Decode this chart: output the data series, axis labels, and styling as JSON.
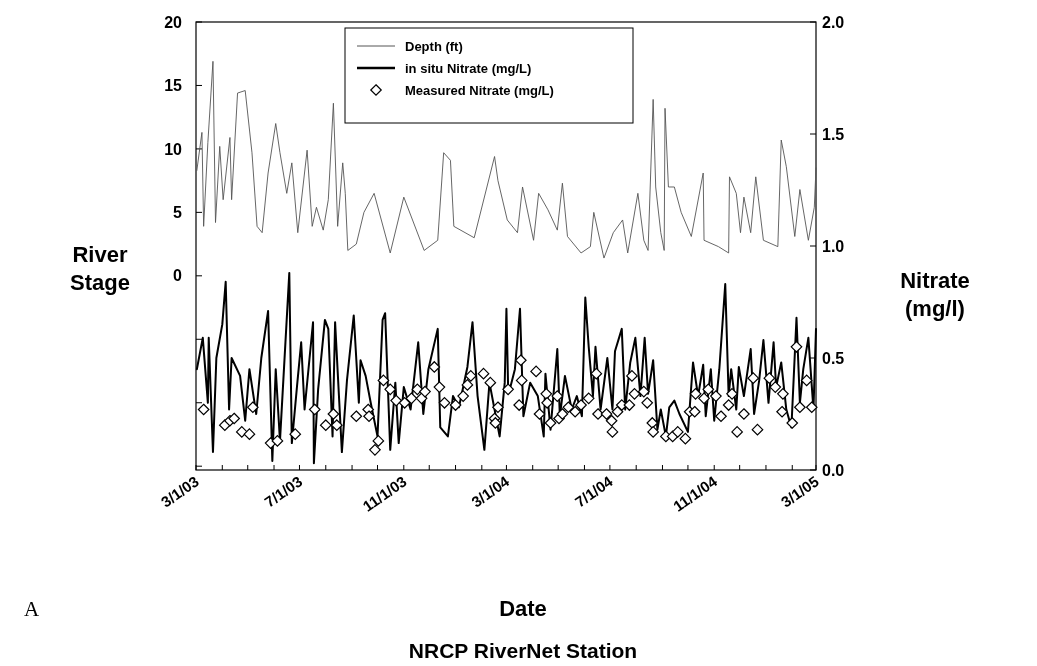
{
  "chart_data": {
    "type": "line",
    "xlabel": "Date",
    "ylabel": "River Stage",
    "y2label": "Nitrate (mg/l)",
    "annotations": [
      "A",
      "NRCP RiverNet Station"
    ],
    "legend": "top",
    "xlim": [
      "2003-03-01",
      "2005-03-01"
    ],
    "xticks": [
      {
        "value": "2003-03-01",
        "label": "3/1/03"
      },
      {
        "value": "2003-04-01",
        "label": null
      },
      {
        "value": "2003-05-01",
        "label": null
      },
      {
        "value": "2003-06-01",
        "label": null
      },
      {
        "value": "2003-07-01",
        "label": "7/1/03"
      },
      {
        "value": "2003-08-01",
        "label": null
      },
      {
        "value": "2003-09-01",
        "label": null
      },
      {
        "value": "2003-10-01",
        "label": null
      },
      {
        "value": "2003-11-01",
        "label": "11/1/03"
      },
      {
        "value": "2003-12-01",
        "label": null
      },
      {
        "value": "2004-01-01",
        "label": null
      },
      {
        "value": "2004-02-01",
        "label": null
      },
      {
        "value": "2004-03-01",
        "label": "3/1/04"
      },
      {
        "value": "2004-04-01",
        "label": null
      },
      {
        "value": "2004-05-01",
        "label": null
      },
      {
        "value": "2004-06-01",
        "label": null
      },
      {
        "value": "2004-07-01",
        "label": "7/1/04"
      },
      {
        "value": "2004-08-01",
        "label": null
      },
      {
        "value": "2004-09-01",
        "label": null
      },
      {
        "value": "2004-10-01",
        "label": null
      },
      {
        "value": "2004-11-01",
        "label": "11/1/04"
      },
      {
        "value": "2004-12-01",
        "label": null
      },
      {
        "value": "2005-01-01",
        "label": null
      },
      {
        "value": "2005-02-01",
        "label": null
      },
      {
        "value": "2005-03-01",
        "label": "3/1/05"
      }
    ],
    "ylim": [
      -15.3,
      20
    ],
    "yticks": [
      {
        "value": -15,
        "label": null
      },
      {
        "value": -10,
        "label": null
      },
      {
        "value": -5,
        "label": null
      },
      0,
      5,
      10,
      15,
      20
    ],
    "y2lim": [
      0,
      2
    ],
    "y2ticks": [
      {
        "value": 0,
        "label": "0.0"
      },
      {
        "value": 0.5,
        "label": "0.5"
      },
      {
        "value": 1,
        "label": "1.0"
      },
      {
        "value": 1.5,
        "label": "1.5"
      },
      {
        "value": 2,
        "label": "2.0"
      }
    ],
    "series": [
      {
        "name": "Depth (ft)",
        "color": "#555555",
        "marker": "none",
        "x": [
          "2003-03-02",
          "2003-03-08",
          "2003-03-10",
          "2003-03-15",
          "2003-03-21",
          "2003-03-24",
          "2003-03-29",
          "2003-04-02",
          "2003-04-10",
          "2003-04-12",
          "2003-04-19",
          "2003-04-28",
          "2003-05-06",
          "2003-05-12",
          "2003-05-18",
          "2003-05-25",
          "2003-06-03",
          "2003-06-08",
          "2003-06-16",
          "2003-06-22",
          "2003-06-29",
          "2003-07-10",
          "2003-07-16",
          "2003-07-21",
          "2003-07-29",
          "2003-08-04",
          "2003-08-10",
          "2003-08-15",
          "2003-08-21",
          "2003-08-24",
          "2003-08-27",
          "2003-09-06",
          "2003-09-15",
          "2003-09-27",
          "2003-10-16",
          "2003-11-01",
          "2003-11-25",
          "2003-12-11",
          "2003-12-18",
          "2003-12-26",
          "2003-12-30",
          "2004-01-23",
          "2004-02-16",
          "2004-02-20",
          "2004-03-02",
          "2004-03-14",
          "2004-03-20",
          "2004-04-02",
          "2004-04-08",
          "2004-04-19",
          "2004-04-30",
          "2004-05-06",
          "2004-05-12",
          "2004-05-28",
          "2004-06-08",
          "2004-06-12",
          "2004-06-24",
          "2004-07-05",
          "2004-07-16",
          "2004-07-22",
          "2004-08-03",
          "2004-08-10",
          "2004-08-15",
          "2004-08-21",
          "2004-08-24",
          "2004-08-30",
          "2004-09-03",
          "2004-09-04",
          "2004-09-08",
          "2004-09-15",
          "2004-09-23",
          "2004-10-05",
          "2004-10-19",
          "2004-10-20",
          "2004-11-06",
          "2004-11-18",
          "2004-11-19",
          "2004-11-27",
          "2004-12-02",
          "2004-12-06",
          "2004-12-14",
          "2004-12-20",
          "2004-12-29",
          "2005-01-15",
          "2005-01-19",
          "2005-01-25",
          "2005-02-04",
          "2005-02-10",
          "2005-02-20",
          "2005-02-27",
          "2005-03-01"
        ],
        "values": [
          8.3,
          11.3,
          3.9,
          10.5,
          16.9,
          4.2,
          10.2,
          6,
          10.9,
          6,
          14.4,
          14.6,
          9.7,
          3.9,
          3.4,
          8.1,
          12,
          9.7,
          6.5,
          8.9,
          3.4,
          9.9,
          3.9,
          5.4,
          3.6,
          6,
          13.6,
          3.9,
          8.9,
          6.5,
          2,
          2.5,
          5,
          6.5,
          1.8,
          6.2,
          2,
          2.8,
          9.7,
          9.1,
          3.9,
          3,
          9.4,
          7.5,
          4.4,
          3.4,
          7,
          2.8,
          6.5,
          5.2,
          3.6,
          7.3,
          3.1,
          1.8,
          2.3,
          5,
          1.4,
          3.4,
          4.4,
          1.8,
          6.5,
          2.8,
          2,
          13.9,
          7,
          3.4,
          2,
          13.2,
          7,
          7,
          5,
          3.1,
          8.1,
          2.8,
          2.3,
          1.8,
          7.8,
          6.5,
          3.4,
          6.2,
          3.4,
          7.8,
          2.8,
          2.3,
          10.7,
          8.6,
          3.1,
          6.8,
          2.8,
          5.4,
          8.5
        ]
      },
      {
        "name": "in situ Nitrate (mg/L)",
        "axis": "y2",
        "color": "#000000",
        "marker": "none",
        "x": [
          "2003-03-02",
          "2003-03-09",
          "2003-03-15",
          "2003-03-16",
          "2003-03-21",
          "2003-03-25",
          "2003-04-01",
          "2003-04-05",
          "2003-04-09",
          "2003-04-12",
          "2003-04-22",
          "2003-04-28",
          "2003-05-03",
          "2003-05-11",
          "2003-05-17",
          "2003-05-25",
          "2003-05-30",
          "2003-06-03",
          "2003-06-08",
          "2003-06-19",
          "2003-06-22",
          "2003-06-28",
          "2003-07-03",
          "2003-07-07",
          "2003-07-17",
          "2003-07-18",
          "2003-07-23",
          "2003-07-31",
          "2003-08-04",
          "2003-08-09",
          "2003-08-12",
          "2003-08-20",
          "2003-08-26",
          "2003-09-03",
          "2003-09-09",
          "2003-09-11",
          "2003-09-17",
          "2003-09-23",
          "2003-10-01",
          "2003-10-07",
          "2003-10-10",
          "2003-10-16",
          "2003-10-22",
          "2003-10-26",
          "2003-11-01",
          "2003-11-09",
          "2003-11-18",
          "2003-11-24",
          "2003-11-30",
          "2003-12-11",
          "2003-12-14",
          "2003-12-23",
          "2003-12-29",
          "2004-01-05",
          "2004-01-15",
          "2004-01-21",
          "2004-01-27",
          "2004-02-04",
          "2004-02-10",
          "2004-02-16",
          "2004-02-22",
          "2004-02-28",
          "2004-03-01",
          "2004-03-03",
          "2004-03-05",
          "2004-03-11",
          "2004-03-17",
          "2004-03-21",
          "2004-03-29",
          "2004-04-07",
          "2004-04-14",
          "2004-04-16",
          "2004-04-22",
          "2004-04-30",
          "2004-05-03",
          "2004-05-09",
          "2004-05-17",
          "2004-05-23",
          "2004-05-29",
          "2004-06-02",
          "2004-06-06",
          "2004-06-11",
          "2004-06-14",
          "2004-06-20",
          "2004-06-28",
          "2004-07-04",
          "2004-07-07",
          "2004-07-15",
          "2004-07-19",
          "2004-07-25",
          "2004-07-31",
          "2004-08-06",
          "2004-08-11",
          "2004-08-15",
          "2004-08-21",
          "2004-08-26",
          "2004-08-30",
          "2004-09-05",
          "2004-09-09",
          "2004-09-15",
          "2004-09-21",
          "2004-10-01",
          "2004-10-07",
          "2004-10-13",
          "2004-10-19",
          "2004-10-22",
          "2004-10-28",
          "2004-11-01",
          "2004-11-07",
          "2004-11-14",
          "2004-11-18",
          "2004-11-21",
          "2004-11-27",
          "2004-11-30",
          "2004-12-06",
          "2004-12-14",
          "2004-12-18",
          "2004-12-24",
          "2004-12-29",
          "2005-01-04",
          "2005-01-10",
          "2005-01-13",
          "2005-01-19",
          "2005-01-25",
          "2005-01-31",
          "2005-02-06",
          "2005-02-10",
          "2005-02-14",
          "2005-02-20",
          "2005-02-26",
          "2005-03-01"
        ],
        "values": [
          0.45,
          0.59,
          0.3,
          0.59,
          0.08,
          0.5,
          0.65,
          0.84,
          0.27,
          0.5,
          0.42,
          0.22,
          0.45,
          0.25,
          0.5,
          0.71,
          0.04,
          0.45,
          0.13,
          0.88,
          0.12,
          0.37,
          0.57,
          0.27,
          0.66,
          0.03,
          0.36,
          0.67,
          0.63,
          0.15,
          0.66,
          0.08,
          0.4,
          0.69,
          0.3,
          0.49,
          0.42,
          0.3,
          0.15,
          0.67,
          0.7,
          0.09,
          0.39,
          0.12,
          0.37,
          0.27,
          0.57,
          0.25,
          0.45,
          0.63,
          0.19,
          0.15,
          0.33,
          0.28,
          0.46,
          0.66,
          0.33,
          0.09,
          0.39,
          0.27,
          0.15,
          0.39,
          0.72,
          0.37,
          0.36,
          0.45,
          0.72,
          0.24,
          0.39,
          0.33,
          0.15,
          0.43,
          0.18,
          0.54,
          0.24,
          0.42,
          0.27,
          0.33,
          0.24,
          0.77,
          0.55,
          0.33,
          0.55,
          0.27,
          0.5,
          0.27,
          0.53,
          0.63,
          0.27,
          0.48,
          0.59,
          0.33,
          0.59,
          0.34,
          0.49,
          0.18,
          0.27,
          0.15,
          0.28,
          0.31,
          0.25,
          0.17,
          0.48,
          0.33,
          0.47,
          0.24,
          0.45,
          0.22,
          0.45,
          0.83,
          0.33,
          0.45,
          0.27,
          0.46,
          0.33,
          0.54,
          0.25,
          0.4,
          0.58,
          0.3,
          0.57,
          0.37,
          0.48,
          0.27,
          0.19,
          0.68,
          0.3,
          0.45,
          0.59,
          0.27,
          0.63
        ]
      },
      {
        "name": "Measured Nitrate (mg/L)",
        "type": "scatter",
        "axis": "y2",
        "color": "#000000",
        "marker": "diamond",
        "x": [
          "2003-03-10",
          "2003-04-04",
          "2003-04-10",
          "2003-04-15",
          "2003-04-24",
          "2003-05-03",
          "2003-05-07",
          "2003-05-28",
          "2003-06-05",
          "2003-06-26",
          "2003-07-19",
          "2003-08-01",
          "2003-08-10",
          "2003-08-14",
          "2003-09-06",
          "2003-09-20",
          "2003-09-21",
          "2003-09-28",
          "2003-10-02",
          "2003-10-08",
          "2003-10-16",
          "2003-10-23",
          "2003-11-02",
          "2003-11-10",
          "2003-11-17",
          "2003-11-22",
          "2003-11-26",
          "2003-12-07",
          "2003-12-13",
          "2003-12-19",
          "2004-01-01",
          "2004-01-10",
          "2004-01-15",
          "2004-01-19",
          "2004-02-03",
          "2004-02-11",
          "2004-02-16",
          "2004-02-17",
          "2004-02-20",
          "2004-03-03",
          "2004-03-16",
          "2004-03-18",
          "2004-03-19",
          "2004-04-05",
          "2004-04-09",
          "2004-04-17",
          "2004-04-18",
          "2004-04-22",
          "2004-04-30",
          "2004-05-02",
          "2004-05-06",
          "2004-05-13",
          "2004-05-21",
          "2004-05-28",
          "2004-06-06",
          "2004-06-15",
          "2004-06-17",
          "2004-06-27",
          "2004-07-03",
          "2004-07-04",
          "2004-07-10",
          "2004-07-15",
          "2004-07-24",
          "2004-07-27",
          "2004-07-30",
          "2004-08-10",
          "2004-08-14",
          "2004-08-20",
          "2004-08-21",
          "2004-09-05",
          "2004-09-13",
          "2004-09-19",
          "2004-09-28",
          "2004-10-03",
          "2004-10-09",
          "2004-10-10",
          "2004-10-20",
          "2004-10-25",
          "2004-11-03",
          "2004-11-09",
          "2004-11-18",
          "2004-11-22",
          "2004-11-28",
          "2004-12-06",
          "2004-12-17",
          "2004-12-22",
          "2005-01-05",
          "2005-01-12",
          "2005-01-20",
          "2005-01-21",
          "2005-02-01",
          "2005-02-06",
          "2005-02-10",
          "2005-02-18",
          "2005-02-24"
        ],
        "values": [
          0.27,
          0.2,
          0.22,
          0.23,
          0.17,
          0.16,
          0.28,
          0.12,
          0.13,
          0.16,
          0.27,
          0.2,
          0.25,
          0.2,
          0.24,
          0.27,
          0.24,
          0.09,
          0.13,
          0.4,
          0.36,
          0.31,
          0.3,
          0.32,
          0.36,
          0.32,
          0.35,
          0.46,
          0.37,
          0.3,
          0.29,
          0.33,
          0.38,
          0.42,
          0.43,
          0.39,
          0.23,
          0.21,
          0.28,
          0.36,
          0.29,
          0.49,
          0.4,
          0.44,
          0.25,
          0.34,
          0.3,
          0.21,
          0.33,
          0.23,
          0.25,
          0.28,
          0.26,
          0.29,
          0.32,
          0.43,
          0.25,
          0.25,
          0.22,
          0.17,
          0.26,
          0.29,
          0.29,
          0.42,
          0.34,
          0.35,
          0.3,
          0.21,
          0.17,
          0.15,
          0.15,
          0.17,
          0.14,
          0.26,
          0.26,
          0.34,
          0.32,
          0.36,
          0.33,
          0.24,
          0.29,
          0.34,
          0.17,
          0.25,
          0.41,
          0.18,
          0.41,
          0.37,
          0.26,
          0.34,
          0.21,
          0.55,
          0.28,
          0.4,
          0.28
        ]
      }
    ]
  }
}
